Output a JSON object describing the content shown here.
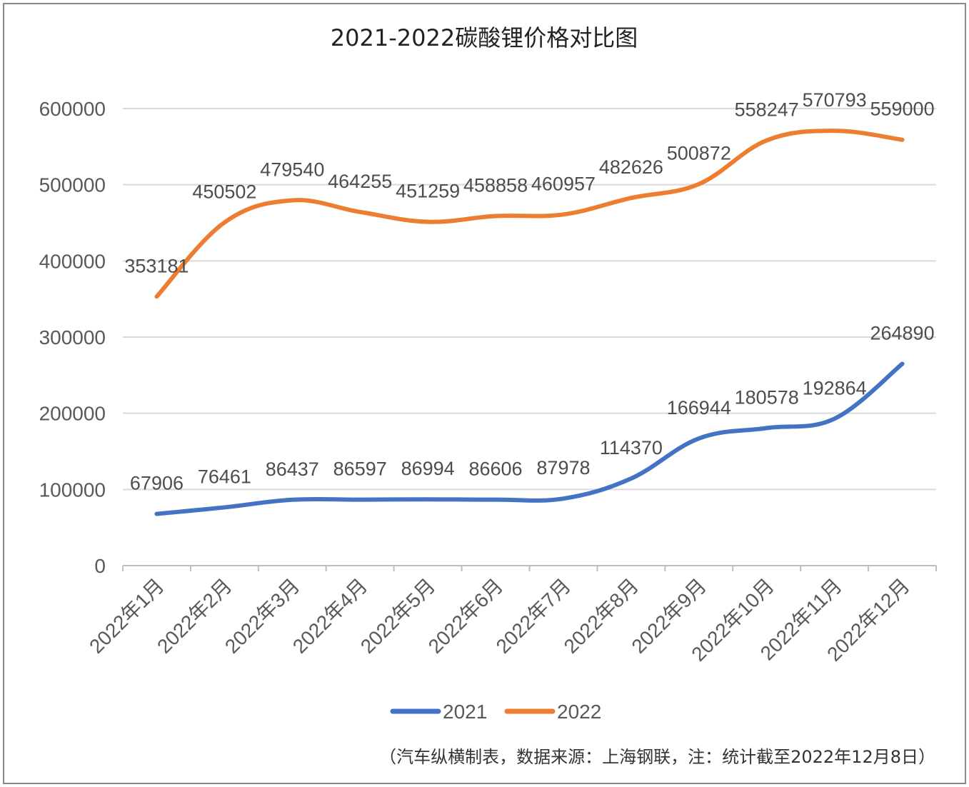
{
  "chart_data": {
    "type": "line",
    "title": "2021-2022碳酸锂价格对比图",
    "categories": [
      "2022年1月",
      "2022年2月",
      "2022年3月",
      "2022年4月",
      "2022年5月",
      "2022年6月",
      "2022年7月",
      "2022年8月",
      "2022年9月",
      "2022年10月",
      "2022年11月",
      "2022年12月"
    ],
    "series": [
      {
        "name": "2021",
        "color": "#4472c4",
        "values": [
          67906,
          76461,
          86437,
          86597,
          86994,
          86606,
          87978,
          114370,
          166944,
          180578,
          192864,
          264890
        ]
      },
      {
        "name": "2022",
        "color": "#ed7d31",
        "values": [
          353181,
          450502,
          479540,
          464255,
          451259,
          458858,
          460957,
          482626,
          500872,
          558247,
          570793,
          559000
        ]
      }
    ],
    "ylim": [
      0,
      600000
    ],
    "yticks": [
      "0",
      "100000",
      "200000",
      "300000",
      "400000",
      "500000",
      "600000"
    ],
    "grid": true,
    "legend_position": "bottom",
    "note": "（汽车纵横制表，数据来源：上海钢联，注：统计截至2022年12月8日）"
  }
}
